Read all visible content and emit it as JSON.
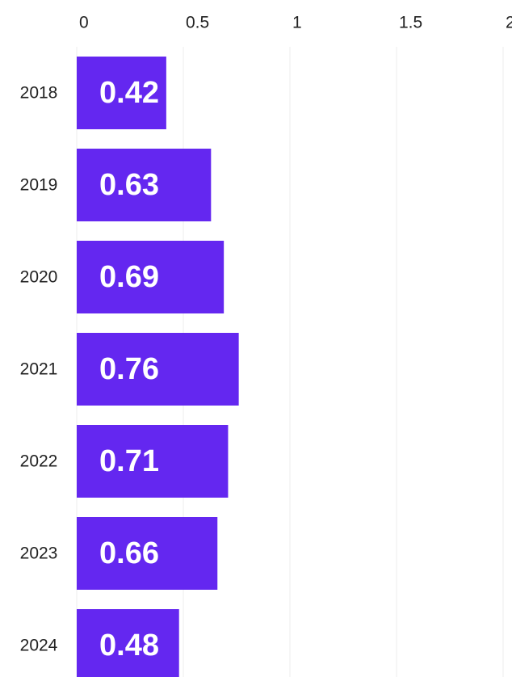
{
  "chart_data": {
    "type": "bar",
    "orientation": "horizontal",
    "categories": [
      "2018",
      "2019",
      "2020",
      "2021",
      "2022",
      "2023",
      "2024"
    ],
    "values": [
      0.42,
      0.63,
      0.69,
      0.76,
      0.71,
      0.66,
      0.48
    ],
    "color": "#6427f0",
    "xlim": [
      0,
      2
    ],
    "xticks": [
      0,
      0.5,
      1,
      1.5,
      2
    ],
    "grid": true
  }
}
